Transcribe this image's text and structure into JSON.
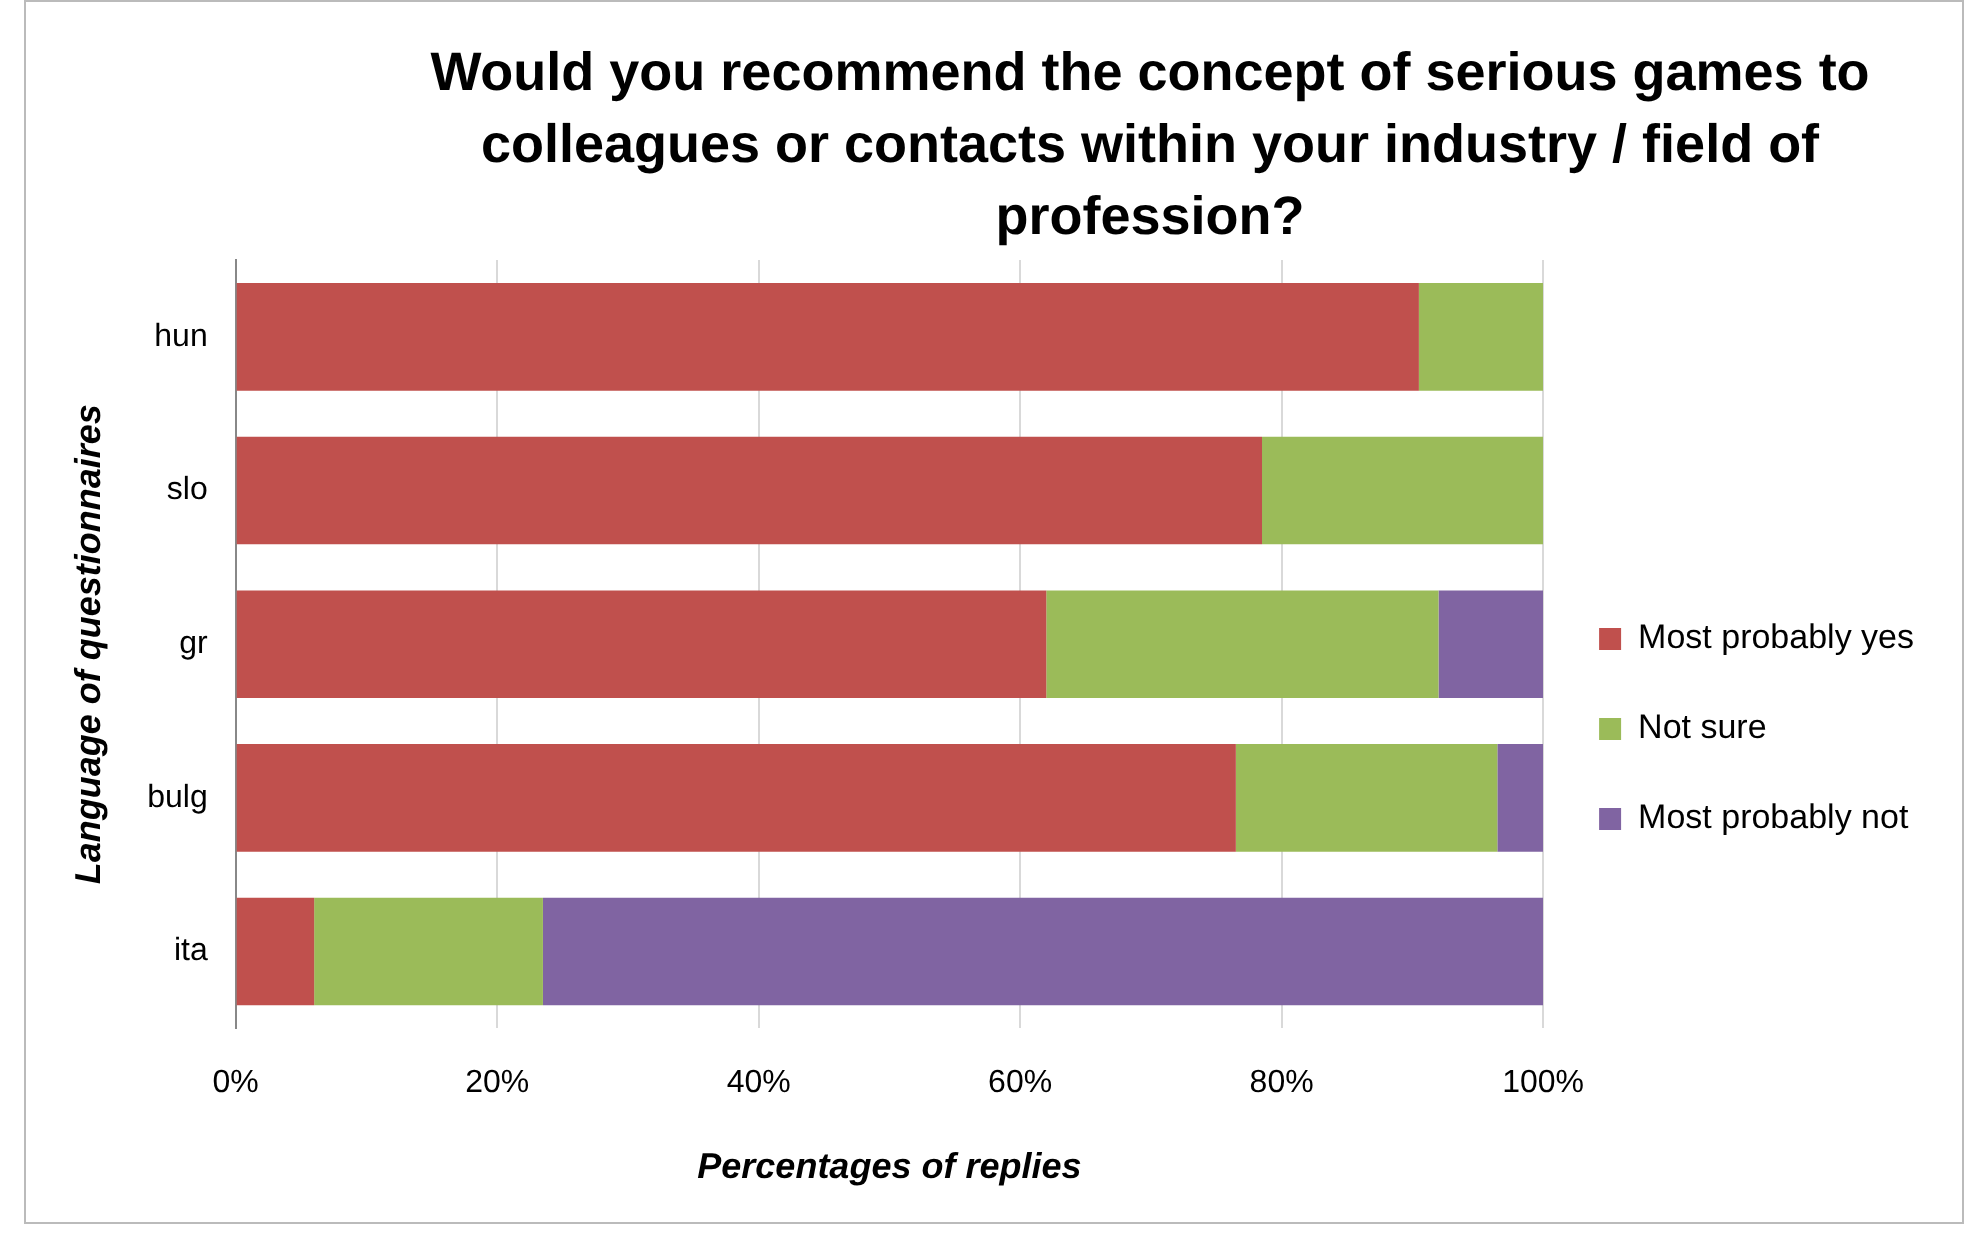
{
  "chart_data": {
    "type": "bar",
    "orientation": "horizontal",
    "stacked": true,
    "title": "Would you recommend the concept of serious games to colleagues or contacts within your industry / field of profession?",
    "xlabel": "Percentages of replies",
    "ylabel": "Language of questionnaires",
    "categories": [
      "hun",
      "slo",
      "gr",
      "bulg",
      "ita"
    ],
    "series": [
      {
        "name": "Most probably yes",
        "color": "#c0504d",
        "values": [
          90.5,
          78.5,
          62,
          76.5,
          6
        ]
      },
      {
        "name": "Not sure",
        "color": "#9bbb59",
        "values": [
          9.5,
          21.5,
          30,
          20,
          17.5
        ]
      },
      {
        "name": "Most probably not",
        "color": "#8064a2",
        "values": [
          0,
          0,
          8,
          3.5,
          76.5
        ]
      }
    ],
    "xlim": [
      0,
      100
    ],
    "xticks": [
      {
        "value": 0,
        "label": "0%"
      },
      {
        "value": 20,
        "label": "20%"
      },
      {
        "value": 40,
        "label": "40%"
      },
      {
        "value": 60,
        "label": "60%"
      },
      {
        "value": 80,
        "label": "80%"
      },
      {
        "value": 100,
        "label": "100%"
      }
    ],
    "grid": "x",
    "legend": "right"
  }
}
